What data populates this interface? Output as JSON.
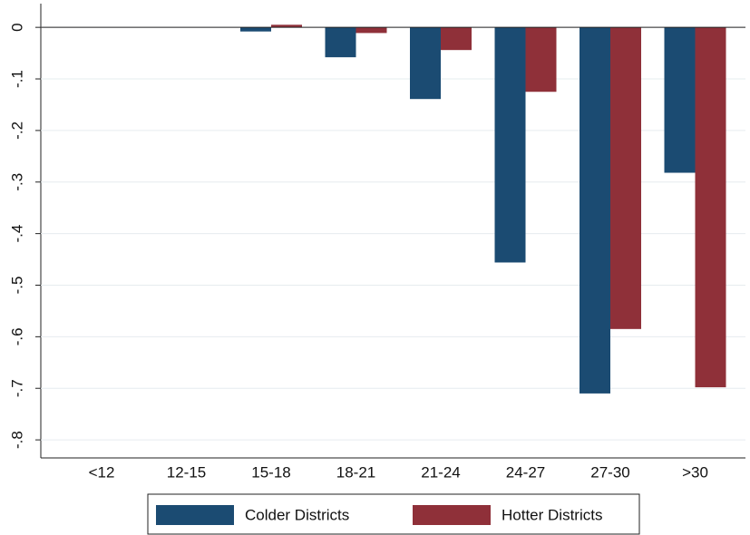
{
  "chart_data": {
    "type": "bar",
    "categories": [
      "<12",
      "12-15",
      "15-18",
      "18-21",
      "21-24",
      "24-27",
      "27-30",
      ">30"
    ],
    "series": [
      {
        "name": "Colder Districts",
        "color": "#1b4b72",
        "values": [
          0,
          0,
          -0.008,
          -0.058,
          -0.139,
          -0.456,
          -0.71,
          -0.282
        ]
      },
      {
        "name": "Hotter Districts",
        "color": "#8f3039",
        "values": [
          0,
          0,
          0.005,
          -0.011,
          -0.044,
          -0.125,
          -0.585,
          -0.698
        ]
      }
    ],
    "ylim": [
      -0.835,
      0.046
    ],
    "yticks": [
      0,
      {
        "value": -0.1,
        "label": "-.1"
      },
      {
        "value": -0.2,
        "label": "-.2"
      },
      {
        "value": -0.3,
        "label": "-.3"
      },
      {
        "value": -0.4,
        "label": "-.4"
      },
      {
        "value": -0.5,
        "label": "-.5"
      },
      {
        "value": -0.6,
        "label": "-.6"
      },
      {
        "value": -0.7,
        "label": "-.7"
      },
      {
        "value": -0.8,
        "label": "-.8"
      }
    ],
    "grid": true
  }
}
